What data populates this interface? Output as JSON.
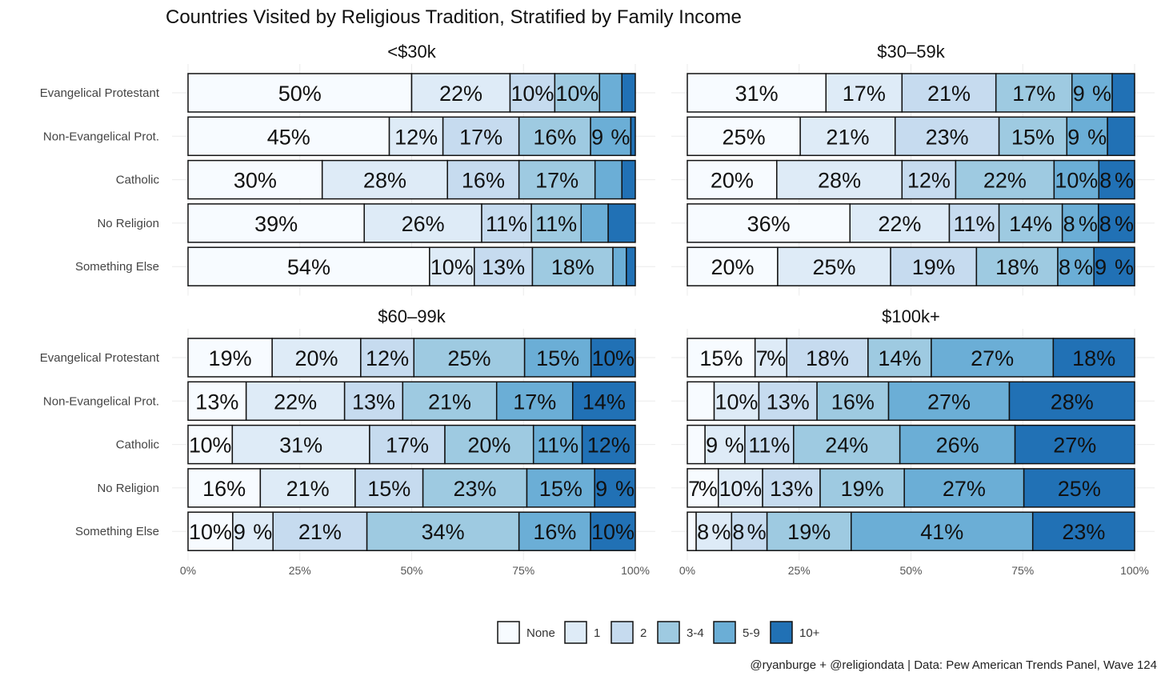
{
  "chart_data": {
    "type": "bar",
    "orientation": "horizontal-stacked-100",
    "title": "Countries Visited by Religious Tradition, Stratified by Family Income",
    "caption": "@ryanburge + @religiondata | Data: Pew American Trends Panel, Wave 124",
    "categories": [
      "Evangelical Protestant",
      "Non-Evangelical Prot.",
      "Catholic",
      "No Religion",
      "Something Else"
    ],
    "legend": [
      "None",
      "1",
      "2",
      "3-4",
      "5-9",
      "10+"
    ],
    "legend_position": "bottom",
    "colors": [
      "#f7fbff",
      "#deebf7",
      "#c6dbef",
      "#9ecae1",
      "#6baed6",
      "#2171b5"
    ],
    "xlim": [
      0,
      100
    ],
    "xticks": [
      "0%",
      "25%",
      "50%",
      "75%",
      "100%"
    ],
    "label_min": 7,
    "panels": [
      {
        "title": "<$30k",
        "values": [
          [
            50,
            22,
            10,
            10,
            5,
            3
          ],
          [
            45,
            12,
            17,
            16,
            9,
            1
          ],
          [
            30,
            28,
            16,
            17,
            6,
            3
          ],
          [
            39,
            26,
            11,
            11,
            6,
            6
          ],
          [
            54,
            10,
            13,
            18,
            3,
            2
          ]
        ]
      },
      {
        "title": "$30–59k",
        "values": [
          [
            31,
            17,
            21,
            17,
            9,
            5
          ],
          [
            25,
            21,
            23,
            15,
            9,
            6
          ],
          [
            20,
            28,
            12,
            22,
            10,
            8
          ],
          [
            36,
            22,
            11,
            14,
            8,
            8
          ],
          [
            20,
            25,
            19,
            18,
            8,
            9
          ]
        ]
      },
      {
        "title": "$60–99k",
        "values": [
          [
            19,
            20,
            12,
            25,
            15,
            10
          ],
          [
            13,
            22,
            13,
            21,
            17,
            14
          ],
          [
            10,
            31,
            17,
            20,
            11,
            12
          ],
          [
            16,
            21,
            15,
            23,
            15,
            9
          ],
          [
            10,
            9,
            21,
            34,
            16,
            10
          ]
        ]
      },
      {
        "title": "$100k+",
        "values": [
          [
            15,
            7,
            18,
            14,
            27,
            18
          ],
          [
            6,
            10,
            13,
            16,
            27,
            28
          ],
          [
            4,
            9,
            11,
            24,
            26,
            27
          ],
          [
            7,
            10,
            13,
            19,
            27,
            25
          ],
          [
            2,
            8,
            8,
            19,
            41,
            23
          ]
        ]
      }
    ]
  }
}
